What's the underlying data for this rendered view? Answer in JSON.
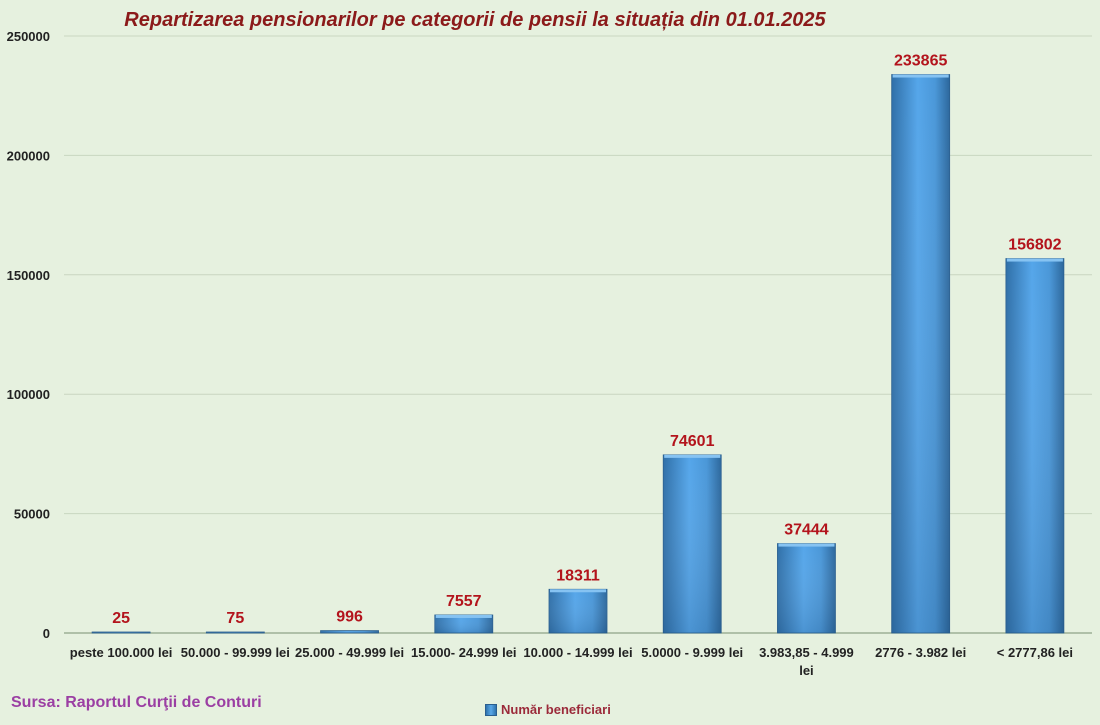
{
  "chart_data": {
    "type": "bar",
    "title": "Repartizarea pensionarilor pe categorii de pensii la situația din 01.01.2025",
    "categories": [
      "peste 100.000 lei",
      "50.000 - 99.999 lei",
      "25.000 - 49.999 lei",
      "15.000- 24.999 lei",
      "10.000 - 14.999 lei",
      "5.0000 - 9.999  lei",
      "3.983,85 - 4.999 lei",
      "2776 - 3.982 lei",
      "< 2777,86 lei"
    ],
    "series": [
      {
        "name": "Număr beneficiari",
        "values": [
          25,
          75,
          996,
          7557,
          18311,
          74601,
          37444,
          233865,
          156802
        ]
      }
    ],
    "y_ticks": [
      "0",
      "50000",
      "100000",
      "150000",
      "200000",
      "250000"
    ],
    "ylim": [
      0,
      250000
    ],
    "xlabel": "",
    "ylabel": "",
    "grid": true,
    "legend_position": "bottom",
    "colors": {
      "bar": "#4a9be0",
      "bar_dark": "#2f73ad",
      "data_label": "#b3141c",
      "title": "#8b1a1a",
      "grid": "#c9d6c0"
    }
  },
  "source_text": "Sursa: Raportul Curţii de Conturi"
}
